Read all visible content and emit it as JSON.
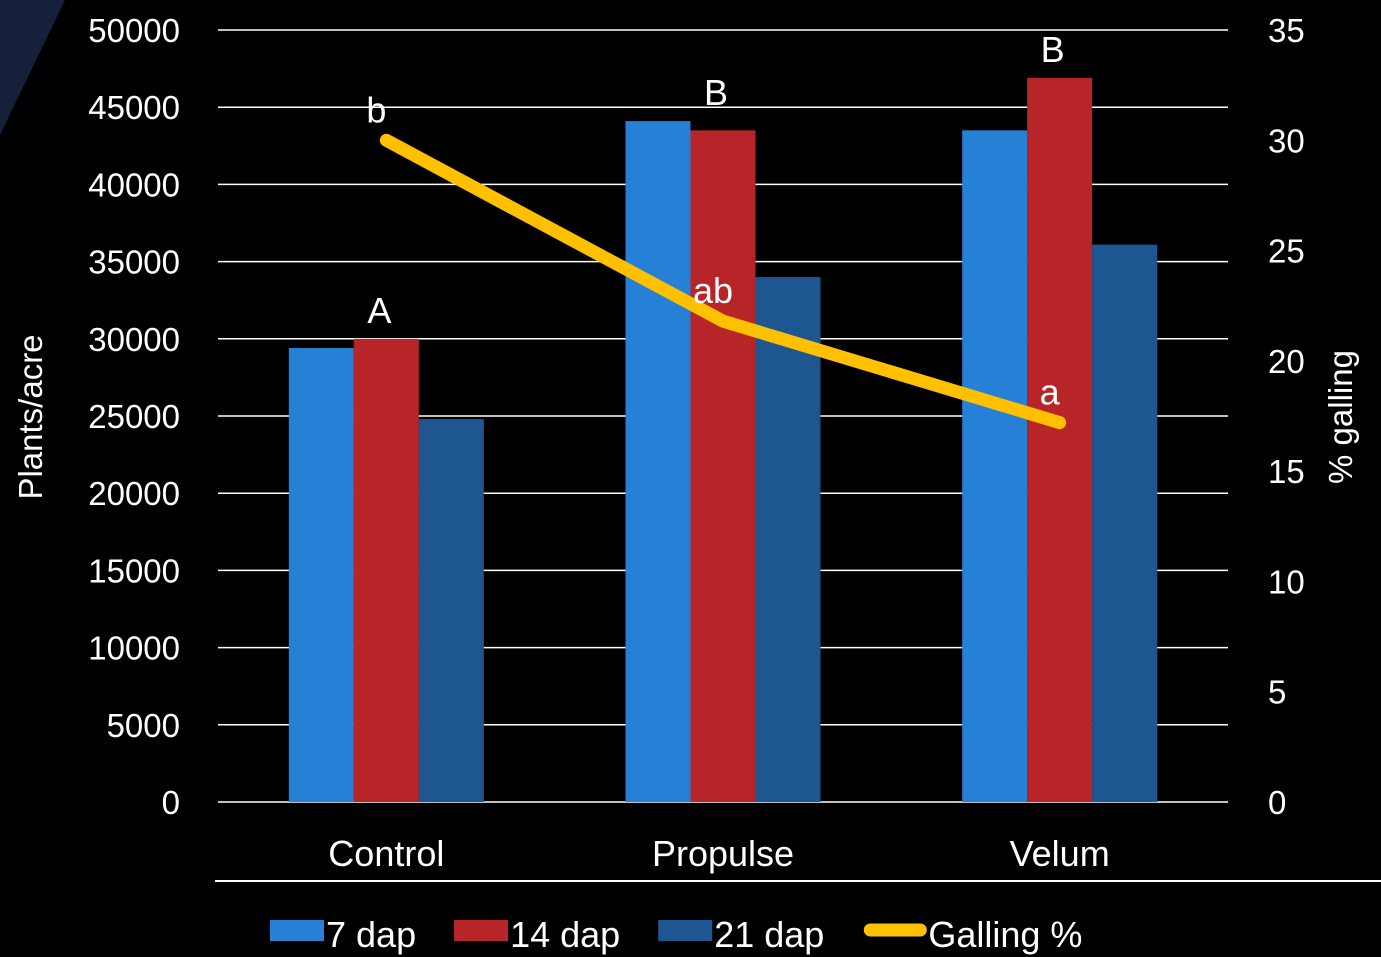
{
  "chart_data": {
    "type": "bar",
    "categories": [
      "Control",
      "Propulse",
      "Velum"
    ],
    "ylabel": "Plants/acre",
    "ylim": [
      0,
      50000
    ],
    "yticks": [
      0,
      5000,
      10000,
      15000,
      20000,
      25000,
      30000,
      35000,
      40000,
      45000,
      50000
    ],
    "y2label": "% galling",
    "y2lim": [
      0,
      35
    ],
    "y2ticks": [
      0,
      5,
      10,
      15,
      20,
      25,
      30,
      35
    ],
    "grid": true,
    "legend_position": "bottom",
    "series": [
      {
        "name": "7 dap",
        "type": "bar",
        "axis": "left",
        "color": "#2680d6",
        "values": [
          29400,
          44100,
          43500
        ]
      },
      {
        "name": "14 dap",
        "type": "bar",
        "axis": "left",
        "color": "#b72528",
        "values": [
          30000,
          43500,
          46900
        ]
      },
      {
        "name": "21 dap",
        "type": "bar",
        "axis": "left",
        "color": "#1d5690",
        "values": [
          24800,
          34000,
          36100
        ]
      },
      {
        "name": "Galling %",
        "type": "line",
        "axis": "right",
        "color": "#ffc000",
        "values": [
          30,
          21.8,
          17.2
        ]
      }
    ],
    "bar_letters": [
      "A",
      "B",
      "B"
    ],
    "line_letters": [
      "b",
      "ab",
      "a"
    ]
  }
}
